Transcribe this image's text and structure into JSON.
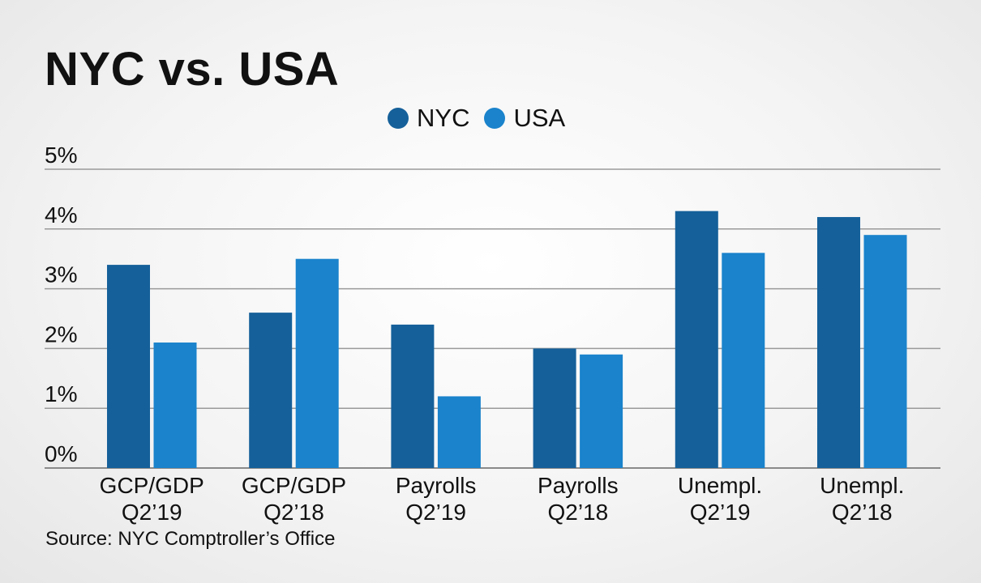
{
  "chart_data": {
    "type": "bar",
    "title": "NYC vs. USA",
    "source": "Source: NYC Comptroller’s Office",
    "categories": [
      [
        "GCP/GDP",
        "Q2’19"
      ],
      [
        "GCP/GDP",
        "Q2’18"
      ],
      [
        "Payrolls",
        "Q2’19"
      ],
      [
        "Payrolls",
        "Q2’18"
      ],
      [
        "Unempl.",
        "Q2’19"
      ],
      [
        "Unempl.",
        "Q2’18"
      ]
    ],
    "series": [
      {
        "name": "NYC",
        "color": "#15609a",
        "values": [
          3.4,
          2.6,
          2.4,
          2.0,
          4.3,
          4.2
        ]
      },
      {
        "name": "USA",
        "color": "#1a83cc",
        "values": [
          2.1,
          3.5,
          1.2,
          1.9,
          3.6,
          3.9
        ]
      }
    ],
    "yticks": [
      "0%",
      "1%",
      "2%",
      "3%",
      "4%",
      "5%"
    ],
    "ylim": [
      0,
      5
    ],
    "grid": true,
    "legend": "top-center",
    "xlabel": "",
    "ylabel": ""
  }
}
